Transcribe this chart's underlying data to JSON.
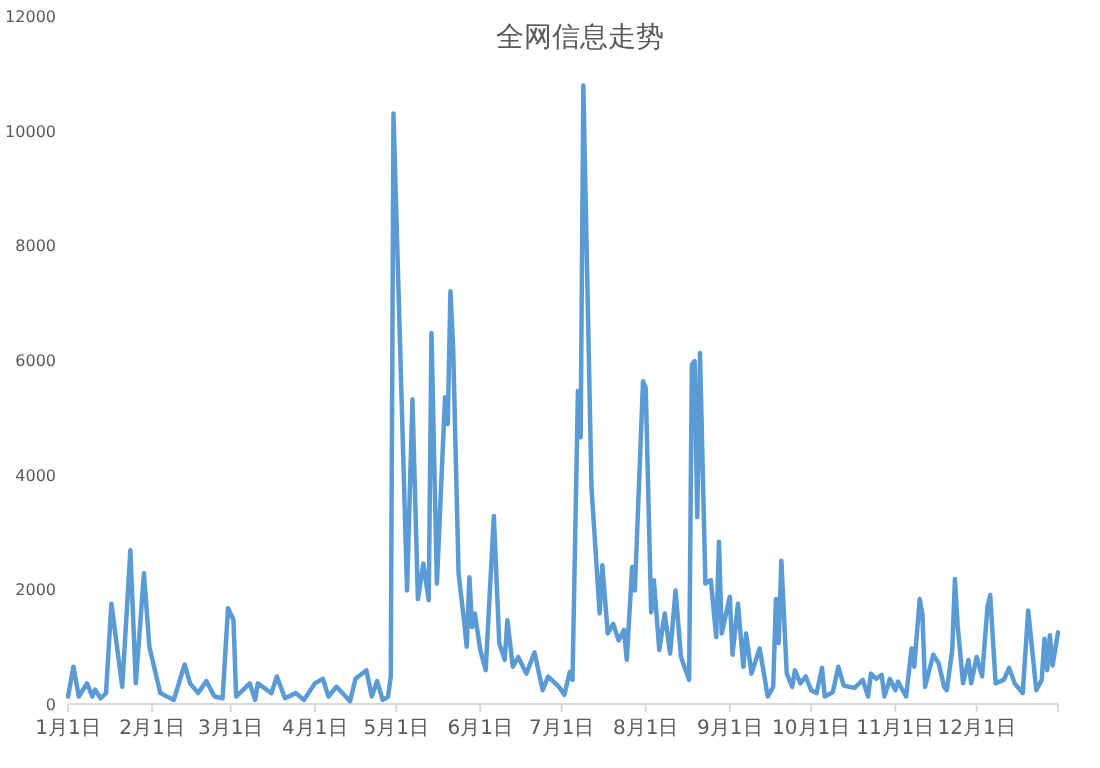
{
  "chart_data": {
    "type": "line",
    "title": "全网信息走势",
    "color": "#5b9bd5",
    "x": [
      "--01-01",
      "--01-03",
      "--01-05",
      "--01-08",
      "--01-10",
      "--01-11",
      "--01-13",
      "--01-15",
      "--01-17",
      "--01-21",
      "--01-24",
      "--01-26",
      "--01-29",
      "--01-31",
      "--02-04",
      "--02-09",
      "--02-13",
      "--02-15",
      "--02-18",
      "--02-21",
      "--02-24",
      "--02-27",
      "--02-29",
      "--03-02",
      "--03-03",
      "--03-08",
      "--03-10",
      "--03-11",
      "--03-16",
      "--03-18",
      "--03-21",
      "--03-25",
      "--03-28",
      "--04-01",
      "--04-04",
      "--04-06",
      "--04-09",
      "--04-14",
      "--04-16",
      "--04-20",
      "--04-22",
      "--04-24",
      "--04-26",
      "--04-28",
      "--04-29",
      "--04-30",
      "--05-05",
      "--05-07",
      "--05-09",
      "--05-11",
      "--05-13",
      "--05-14",
      "--05-16",
      "--05-19",
      "--05-20",
      "--05-21",
      "--05-22",
      "--05-24",
      "--05-26",
      "--05-27",
      "--05-28",
      "--05-29",
      "--05-30",
      "--06-01",
      "--06-03",
      "--06-06",
      "--06-08",
      "--06-10",
      "--06-11",
      "--06-13",
      "--06-15",
      "--06-18",
      "--06-21",
      "--06-24",
      "--06-26",
      "--06-30",
      "--07-02",
      "--07-04",
      "--07-05",
      "--07-07",
      "--07-08",
      "--07-09",
      "--07-12",
      "--07-15",
      "--07-16",
      "--07-18",
      "--07-20",
      "--07-22",
      "--07-24",
      "--07-25",
      "--07-27",
      "--07-28",
      "--07-31",
      "--08-01",
      "--08-03",
      "--08-04",
      "--08-06",
      "--08-08",
      "--08-10",
      "--08-12",
      "--08-14",
      "--08-17",
      "--08-18",
      "--08-19",
      "--08-20",
      "--08-21",
      "--08-23",
      "--08-25",
      "--08-27",
      "--08-28",
      "--08-29",
      "--09-01",
      "--09-02",
      "--09-04",
      "--09-06",
      "--09-07",
      "--09-09",
      "--09-12",
      "--09-15",
      "--09-17",
      "--09-18",
      "--09-19",
      "--09-20",
      "--09-22",
      "--09-24",
      "--09-25",
      "--09-27",
      "--09-29",
      "--10-01",
      "--10-03",
      "--10-05",
      "--10-06",
      "--10-09",
      "--10-11",
      "--10-13",
      "--10-17",
      "--10-20",
      "--10-22",
      "--10-23",
      "--10-25",
      "--10-27",
      "--10-28",
      "--10-30",
      "--11-01",
      "--11-02",
      "--11-05",
      "--11-07",
      "--11-08",
      "--11-10",
      "--11-11",
      "--11-12",
      "--11-15",
      "--11-17",
      "--11-19",
      "--11-20",
      "--11-22",
      "--11-23",
      "--11-24",
      "--11-26",
      "--11-28",
      "--11-29",
      "--12-01",
      "--12-03",
      "--12-05",
      "--12-06",
      "--12-08",
      "--12-11",
      "--12-13",
      "--12-15",
      "--12-18",
      "--12-20",
      "--12-23",
      "--12-25",
      "--12-26",
      "--12-27",
      "--12-28",
      "--12-29",
      "--12-31"
    ],
    "values": [
      130,
      650,
      130,
      360,
      130,
      250,
      100,
      190,
      1750,
      300,
      2680,
      360,
      2280,
      1000,
      190,
      70,
      690,
      360,
      190,
      400,
      130,
      100,
      1670,
      1470,
      130,
      360,
      70,
      360,
      190,
      480,
      100,
      190,
      70,
      360,
      440,
      130,
      300,
      50,
      440,
      590,
      130,
      400,
      70,
      130,
      480,
      10300,
      1980,
      5310,
      1830,
      2450,
      1810,
      6470,
      2100,
      5350,
      4880,
      7200,
      6210,
      2270,
      1460,
      1000,
      2210,
      1340,
      1580,
      940,
      590,
      3280,
      1060,
      770,
      1460,
      650,
      820,
      530,
      900,
      240,
      480,
      300,
      160,
      560,
      420,
      5460,
      4650,
      10790,
      3780,
      1580,
      2420,
      1230,
      1400,
      1110,
      1290,
      770,
      2390,
      1980,
      5630,
      5520,
      1600,
      2160,
      940,
      1580,
      880,
      1980,
      820,
      420,
      5920,
      5980,
      3260,
      6120,
      2100,
      2160,
      1170,
      2830,
      1230,
      1870,
      860,
      1750,
      650,
      1230,
      530,
      970,
      130,
      300,
      1830,
      1060,
      2500,
      530,
      300,
      590,
      360,
      480,
      240,
      190,
      630,
      130,
      210,
      650,
      320,
      280,
      420,
      130,
      530,
      440,
      510,
      130,
      440,
      240,
      390,
      130,
      970,
      650,
      1830,
      1580,
      300,
      860,
      710,
      300,
      240,
      940,
      2180,
      1370,
      360,
      770,
      360,
      820,
      480,
      1690,
      1900,
      360,
      420,
      630,
      360,
      190,
      1630,
      240,
      420,
      1140,
      590,
      1200,
      670,
      1250
    ],
    "xlim": [
      "--01-01",
      "--12-31"
    ],
    "xticks": [
      {
        "value": "--01-01",
        "label": "1月1日"
      },
      {
        "value": "--02-01",
        "label": "2月1日"
      },
      {
        "value": "--03-01",
        "label": "3月1日"
      },
      {
        "value": "--04-01",
        "label": "4月1日"
      },
      {
        "value": "--05-01",
        "label": "5月1日"
      },
      {
        "value": "--06-01",
        "label": "6月1日"
      },
      {
        "value": "--07-01",
        "label": "7月1日"
      },
      {
        "value": "--08-01",
        "label": "8月1日"
      },
      {
        "value": "--09-01",
        "label": "9月1日"
      },
      {
        "value": "--10-01",
        "label": "10月1日"
      },
      {
        "value": "--11-01",
        "label": "11月1日"
      },
      {
        "value": "--12-01",
        "label": "12月1日"
      },
      {
        "value": "--12-31",
        "label": null
      }
    ],
    "ylim": [
      0,
      12000
    ],
    "yticks": [
      0,
      2000,
      4000,
      6000,
      8000,
      10000,
      12000
    ]
  }
}
